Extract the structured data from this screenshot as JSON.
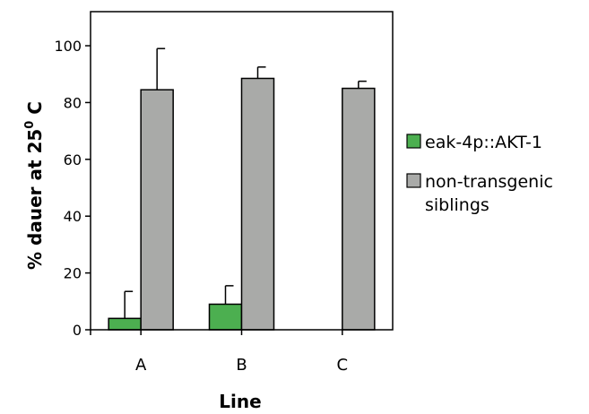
{
  "chart_data": {
    "type": "bar",
    "categories": [
      "A",
      "B",
      "C"
    ],
    "series": [
      {
        "name": "eak-4p::AKT-1",
        "color": "#4caf50",
        "values": [
          4,
          9,
          null
        ],
        "errors": [
          9.5,
          6.5,
          null
        ]
      },
      {
        "name": "non-transgenic siblings",
        "color": "#a9aaa8",
        "values": [
          84.5,
          88.5,
          85
        ],
        "errors": [
          14.5,
          4,
          2.5
        ]
      }
    ],
    "xlabel": "Line",
    "ylabel": "% dauer at 25 C",
    "ylabel_parts": {
      "main": "% dauer at 25",
      "sup": "0",
      "unit": " C"
    },
    "legend_lines": [
      [
        "eak-4p::AKT-1"
      ],
      [
        "non-transgenic",
        "siblings"
      ]
    ],
    "yticks": [
      0,
      20,
      40,
      60,
      80,
      100
    ],
    "ylim": [
      0,
      112
    ],
    "grid": false,
    "legend_position": "right"
  }
}
